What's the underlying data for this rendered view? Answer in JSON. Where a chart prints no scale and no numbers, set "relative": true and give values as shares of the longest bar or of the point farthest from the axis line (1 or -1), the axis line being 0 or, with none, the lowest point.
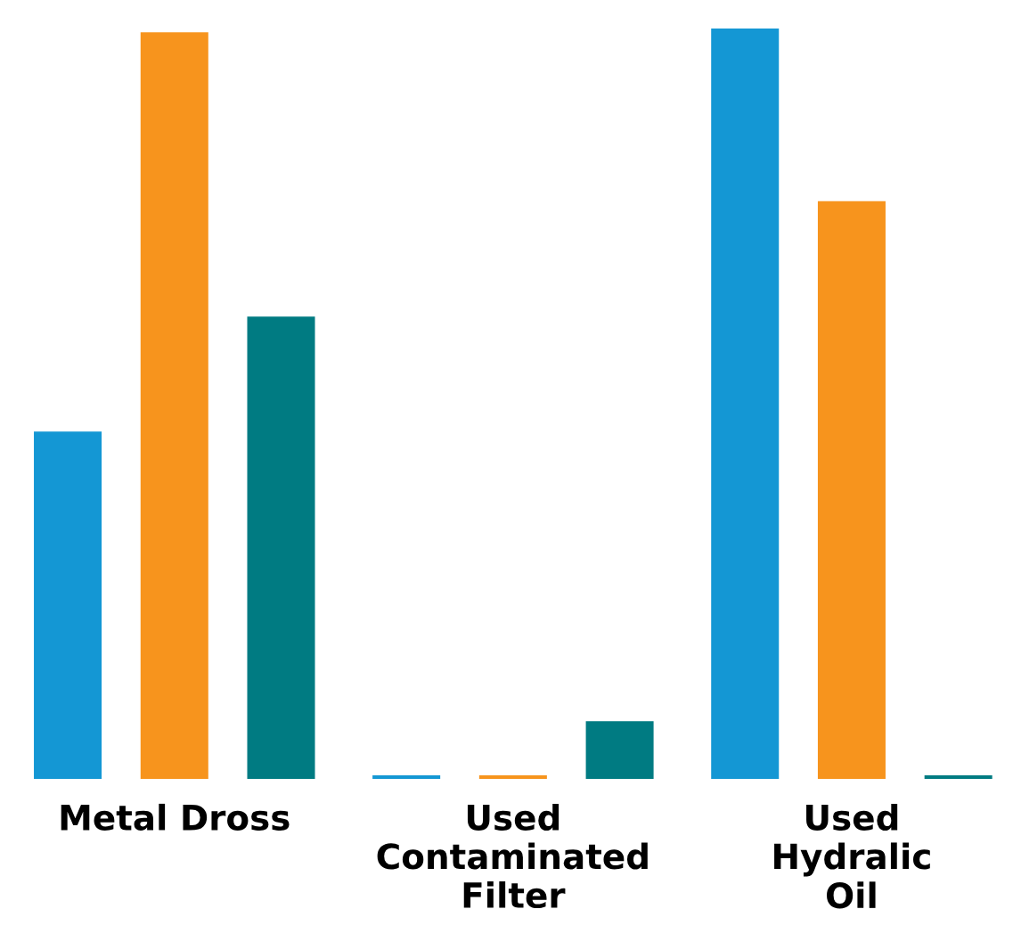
{
  "chart_data": {
    "type": "bar",
    "relative": true,
    "categories": [
      "Metal Dross",
      "Used\nContaminated\nFilter",
      "Used\nHydralic\nOil"
    ],
    "series": [
      {
        "color": "#1497d4",
        "values": [
          0.463,
          0.005,
          1
        ]
      },
      {
        "color": "#f7941d",
        "values": [
          0.995,
          0.005,
          0.77
        ]
      },
      {
        "color": "#007b82",
        "values": [
          0.616,
          0.077,
          0.005
        ]
      }
    ],
    "grid": false,
    "legend": false
  }
}
